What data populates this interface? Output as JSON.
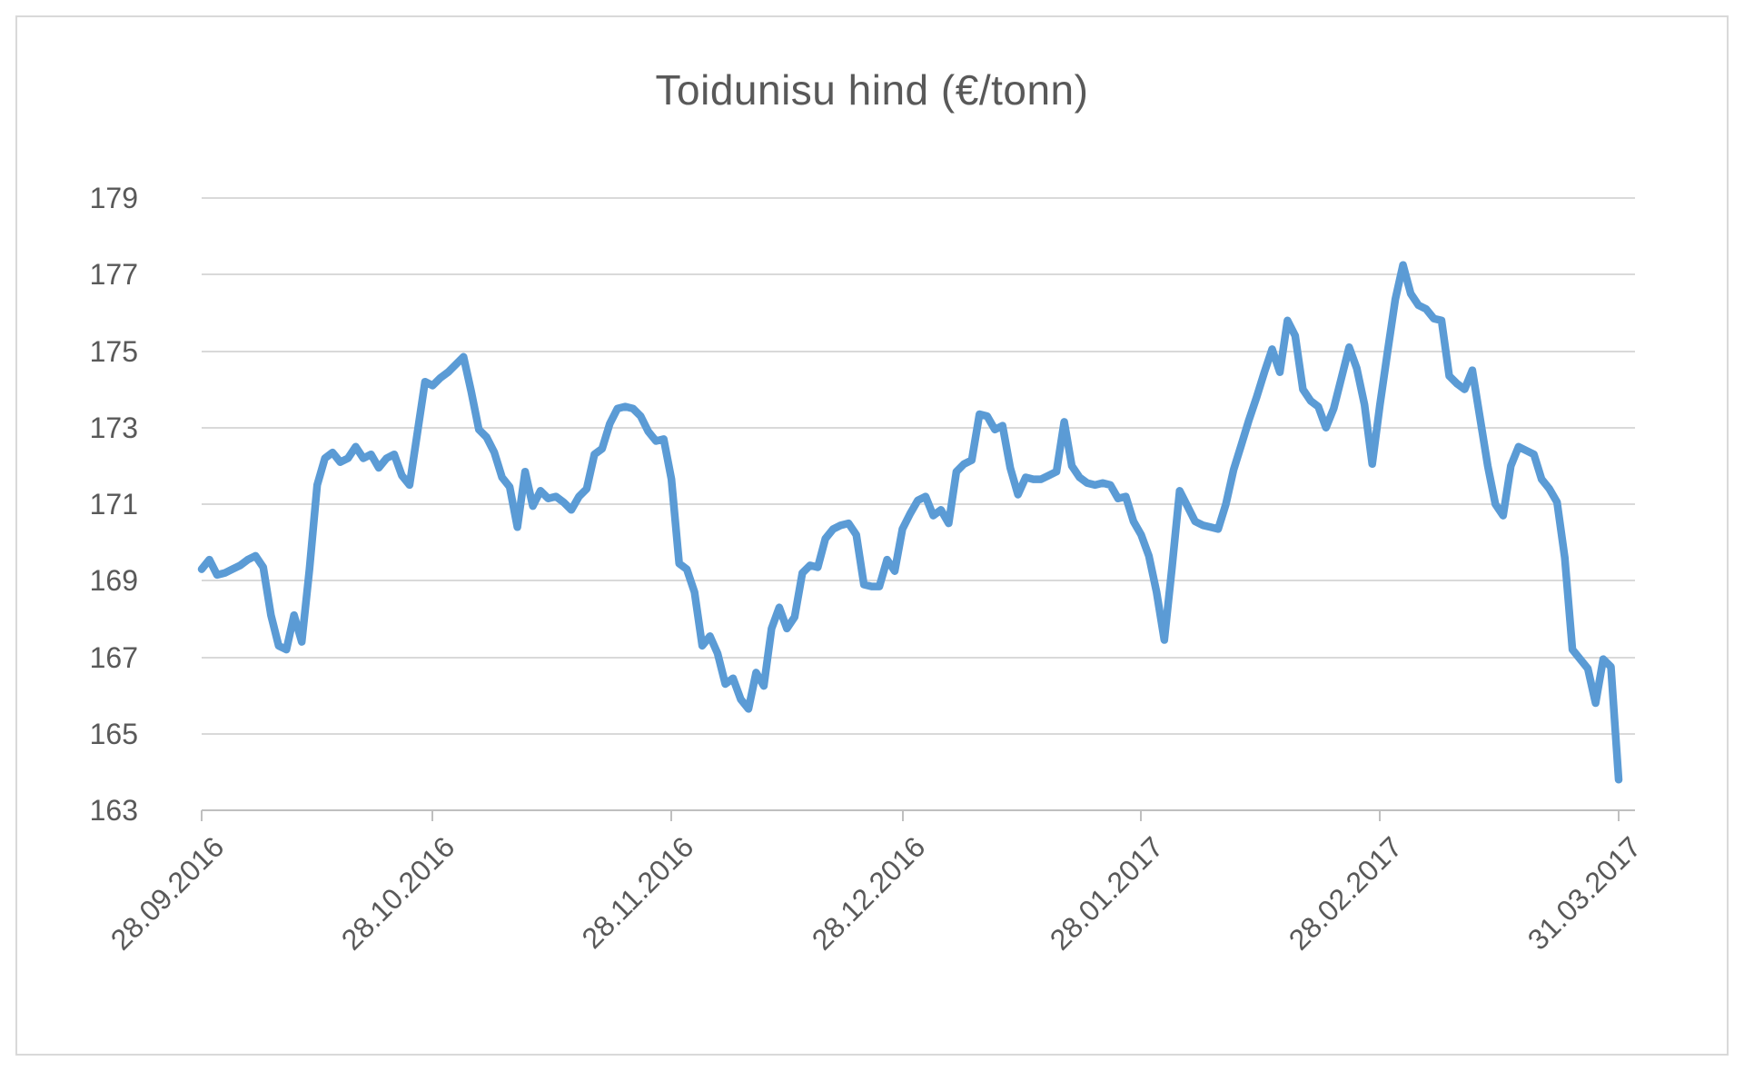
{
  "title": "Toidunisu hind (€/tonn)",
  "colors": {
    "line": "#5B9BD5",
    "gridline": "#D9D9D9",
    "axis": "#BFBFBF",
    "labels": "#595959",
    "title_text": "#595959",
    "frame": "#D9D9D9",
    "background": "#FFFFFF"
  },
  "chart_data": {
    "type": "line",
    "title": "Toidunisu hind (€/tonn)",
    "xlabel": "",
    "ylabel": "",
    "ylim": [
      163,
      179
    ],
    "y_ticks": [
      179,
      177,
      175,
      173,
      171,
      169,
      167,
      165,
      163
    ],
    "grid": true,
    "legend": false,
    "x_tick_labels": [
      "28.09.2016",
      "28.10.2016",
      "28.11.2016",
      "28.12.2016",
      "28.01.2017",
      "28.02.2017",
      "31.03.2017"
    ],
    "x_tick_indices": [
      0,
      30,
      61,
      91,
      122,
      153,
      184
    ],
    "x_start_date": "28.09.2016",
    "x_end_date": "31.03.2017",
    "series": [
      {
        "name": "Toidunisu hind (€/tonn)",
        "values": [
          169.3,
          169.55,
          169.15,
          169.2,
          169.3,
          169.4,
          169.55,
          169.65,
          169.35,
          168.1,
          167.3,
          167.2,
          168.1,
          167.4,
          169.3,
          171.5,
          172.2,
          172.35,
          172.1,
          172.2,
          172.5,
          172.2,
          172.3,
          171.95,
          172.2,
          172.3,
          171.75,
          171.5,
          172.85,
          174.2,
          174.1,
          174.3,
          174.45,
          174.65,
          174.85,
          173.95,
          172.95,
          172.75,
          172.35,
          171.7,
          171.45,
          170.4,
          171.85,
          170.95,
          171.35,
          171.15,
          171.2,
          171.05,
          170.85,
          171.2,
          171.4,
          172.3,
          172.45,
          173.1,
          173.5,
          173.55,
          173.5,
          173.3,
          172.9,
          172.65,
          172.7,
          171.65,
          169.45,
          169.3,
          168.7,
          167.3,
          167.55,
          167.1,
          166.3,
          166.45,
          165.9,
          165.65,
          166.6,
          166.25,
          167.75,
          168.3,
          167.75,
          168.05,
          169.2,
          169.4,
          169.35,
          170.1,
          170.35,
          170.45,
          170.5,
          170.2,
          168.9,
          168.85,
          168.85,
          169.55,
          169.25,
          170.35,
          170.75,
          171.1,
          171.2,
          170.7,
          170.85,
          170.5,
          171.85,
          172.05,
          172.15,
          173.35,
          173.3,
          172.95,
          173.05,
          171.95,
          171.25,
          171.7,
          171.65,
          171.65,
          171.75,
          171.85,
          173.15,
          172.0,
          171.7,
          171.55,
          171.5,
          171.55,
          171.5,
          171.15,
          171.2,
          170.55,
          170.2,
          169.65,
          168.7,
          167.45,
          169.35,
          171.35,
          170.95,
          170.55,
          170.45,
          170.4,
          170.35,
          171.0,
          171.9,
          172.55,
          173.2,
          173.8,
          174.45,
          175.05,
          174.45,
          175.8,
          175.4,
          174.0,
          173.7,
          173.55,
          173.0,
          173.5,
          174.3,
          175.1,
          174.55,
          173.6,
          172.05,
          173.6,
          175.0,
          176.35,
          177.25,
          176.5,
          176.2,
          176.1,
          175.85,
          175.8,
          174.35,
          174.15,
          174.0,
          174.5,
          173.25,
          172.0,
          171.0,
          170.7,
          172.0,
          172.5,
          172.4,
          172.3,
          171.65,
          171.4,
          171.05,
          169.6,
          167.2,
          166.95,
          166.7,
          165.8,
          166.95,
          166.75,
          163.8
        ]
      }
    ]
  }
}
